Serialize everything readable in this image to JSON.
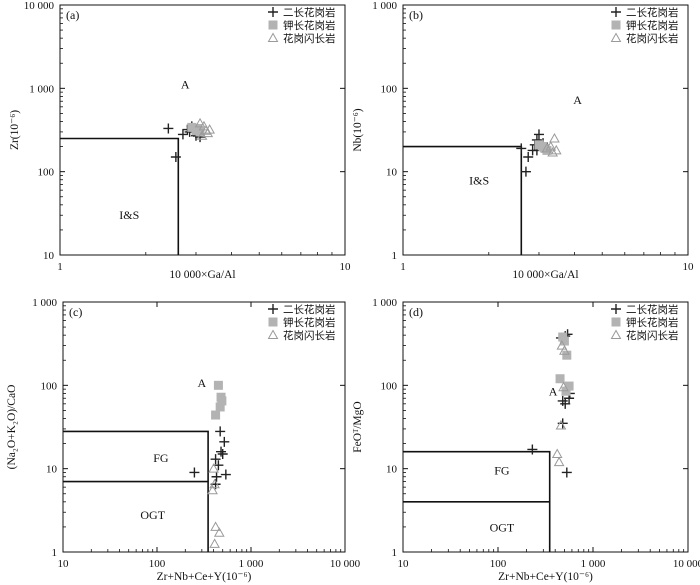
{
  "chart_data": [
    {
      "panel_label": "(a)",
      "type": "scatter",
      "xlabel": "10 000×Ga/Al",
      "ylabel": "Zr(10⁻⁶)",
      "xscale": "log",
      "yscale": "log",
      "xlim": [
        1,
        10
      ],
      "ylim": [
        10,
        10000
      ],
      "x_tick_labels": [
        "1",
        "10"
      ],
      "y_tick_labels": [
        "10",
        "100",
        "1 000",
        "10 000"
      ],
      "legend": [
        "二长花岗岩",
        "钾长花岗岩",
        "花岗闪长岩"
      ],
      "legend_position": "top-right",
      "region_labels": [
        "A",
        "I&S"
      ],
      "boundary": [
        [
          1,
          250
        ],
        [
          2.6,
          250
        ],
        [
          2.6,
          10
        ]
      ],
      "series": [
        {
          "name": "二长花岗岩",
          "marker": "plus",
          "points": [
            [
              2.4,
              330
            ],
            [
              2.55,
              150
            ],
            [
              2.7,
              280
            ],
            [
              2.8,
              320
            ],
            [
              2.9,
              350
            ],
            [
              2.95,
              300
            ],
            [
              3.0,
              270
            ],
            [
              3.1,
              260
            ],
            [
              2.85,
              300
            ]
          ]
        },
        {
          "name": "钾长花岗岩",
          "marker": "square",
          "points": [
            [
              2.9,
              340
            ],
            [
              3.0,
              310
            ],
            [
              3.1,
              300
            ],
            [
              3.05,
              330
            ]
          ]
        },
        {
          "name": "花岗闪长岩",
          "marker": "triangle",
          "points": [
            [
              3.1,
              380
            ],
            [
              3.2,
              350
            ],
            [
              3.25,
              310
            ],
            [
              3.3,
              290
            ],
            [
              3.35,
              320
            ],
            [
              3.15,
              270
            ]
          ]
        }
      ]
    },
    {
      "panel_label": "(b)",
      "type": "scatter",
      "xlabel": "10 000×Ga/Al",
      "ylabel": "Nb(10⁻⁶)",
      "xscale": "log",
      "yscale": "log",
      "xlim": [
        1,
        10
      ],
      "ylim": [
        1,
        1000
      ],
      "x_tick_labels": [
        "1",
        "10"
      ],
      "y_tick_labels": [
        "1",
        "10",
        "100",
        "1 000"
      ],
      "legend": [
        "二长花岗岩",
        "钾长花岗岩",
        "花岗闪长岩"
      ],
      "legend_position": "top-right",
      "region_labels": [
        "A",
        "I&S"
      ],
      "boundary": [
        [
          1,
          20
        ],
        [
          2.6,
          20
        ],
        [
          2.6,
          1
        ]
      ],
      "series": [
        {
          "name": "二长花岗岩",
          "marker": "plus",
          "points": [
            [
              2.6,
              19
            ],
            [
              2.7,
              10
            ],
            [
              2.75,
              15
            ],
            [
              2.85,
              18
            ],
            [
              2.9,
              21
            ],
            [
              2.95,
              24
            ],
            [
              3.0,
              28
            ],
            [
              3.05,
              20
            ],
            [
              3.1,
              22
            ],
            [
              2.95,
              18
            ]
          ]
        },
        {
          "name": "钾长花岗岩",
          "marker": "square",
          "points": [
            [
              3.0,
              21
            ],
            [
              3.1,
              20
            ],
            [
              3.15,
              19
            ],
            [
              3.2,
              18
            ]
          ]
        },
        {
          "name": "花岗闪长岩",
          "marker": "triangle",
          "points": [
            [
              3.2,
              19
            ],
            [
              3.3,
              20
            ],
            [
              3.4,
              25
            ],
            [
              3.45,
              18
            ],
            [
              3.35,
              17
            ]
          ]
        }
      ]
    },
    {
      "panel_label": "(c)",
      "type": "scatter",
      "xlabel": "Zr+Nb+Ce+Y(10⁻⁶)",
      "ylabel": "(Na₂O+K₂O)/CaO",
      "xscale": "log",
      "yscale": "log",
      "xlim": [
        10,
        10000
      ],
      "ylim": [
        1,
        1000
      ],
      "x_tick_labels": [
        "10",
        "100",
        "1 000",
        "10 000"
      ],
      "y_tick_labels": [
        "1",
        "10",
        "100",
        "1 000"
      ],
      "legend": [
        "二长花岗岩",
        "钾长花岗岩",
        "花岗闪长岩"
      ],
      "legend_position": "top-right",
      "region_labels": [
        "A",
        "FG",
        "OGT"
      ],
      "boundaries": [
        [
          [
            10,
            28
          ],
          [
            350,
            28
          ],
          [
            350,
            1
          ]
        ],
        [
          [
            10,
            7
          ],
          [
            350,
            7
          ]
        ]
      ],
      "series": [
        {
          "name": "二长花岗岩",
          "marker": "plus",
          "points": [
            [
              250,
              9
            ],
            [
              420,
              13
            ],
            [
              470,
              28
            ],
            [
              520,
              21
            ],
            [
              480,
              16
            ],
            [
              500,
              15
            ],
            [
              450,
              11
            ],
            [
              430,
              8
            ],
            [
              540,
              8.5
            ],
            [
              420,
              6.5
            ]
          ]
        },
        {
          "name": "钾长花岗岩",
          "marker": "square",
          "points": [
            [
              450,
              100
            ],
            [
              480,
              72
            ],
            [
              490,
              65
            ],
            [
              470,
              55
            ],
            [
              420,
              44
            ]
          ]
        },
        {
          "name": "花岗闪长岩",
          "marker": "triangle",
          "points": [
            [
              400,
              10
            ],
            [
              390,
              5.5
            ],
            [
              410,
              6.5
            ],
            [
              420,
              2.0
            ],
            [
              460,
              1.7
            ],
            [
              410,
              1.25
            ]
          ]
        }
      ]
    },
    {
      "panel_label": "(d)",
      "type": "scatter",
      "xlabel": "Zr+Nb+Ce+Y(10⁻⁶)",
      "ylabel": "FeOᵀ/MgO",
      "xscale": "log",
      "yscale": "log",
      "xlim": [
        10,
        10000
      ],
      "ylim": [
        1,
        1000
      ],
      "x_tick_labels": [
        "10",
        "100",
        "1 000",
        "10 000"
      ],
      "y_tick_labels": [
        "1",
        "10",
        "100",
        "1 000"
      ],
      "legend": [
        "二长花岗岩",
        "钾长花岗岩",
        "花岗闪长岩"
      ],
      "legend_position": "top-right",
      "region_labels": [
        "A",
        "FG",
        "OGT"
      ],
      "boundaries": [
        [
          [
            10,
            16
          ],
          [
            350,
            16
          ],
          [
            350,
            1
          ]
        ],
        [
          [
            10,
            4
          ],
          [
            350,
            4
          ]
        ]
      ],
      "series": [
        {
          "name": "二长花岗岩",
          "marker": "plus",
          "points": [
            [
              230,
              17
            ],
            [
              460,
              370
            ],
            [
              510,
              390
            ],
            [
              540,
              410
            ],
            [
              480,
              65
            ],
            [
              510,
              60
            ],
            [
              570,
              80
            ],
            [
              560,
              70
            ],
            [
              480,
              35
            ],
            [
              530,
              9
            ]
          ]
        },
        {
          "name": "钾长花岗岩",
          "marker": "square",
          "points": [
            [
              480,
              380
            ],
            [
              500,
              340
            ],
            [
              530,
              230
            ],
            [
              450,
              120
            ],
            [
              560,
              98
            ],
            [
              520,
              85
            ]
          ]
        },
        {
          "name": "花岗闪长岩",
          "marker": "triangle",
          "points": [
            [
              470,
              300
            ],
            [
              500,
              260
            ],
            [
              490,
              95
            ],
            [
              420,
              15
            ],
            [
              440,
              12
            ],
            [
              460,
              33
            ]
          ]
        }
      ]
    }
  ]
}
